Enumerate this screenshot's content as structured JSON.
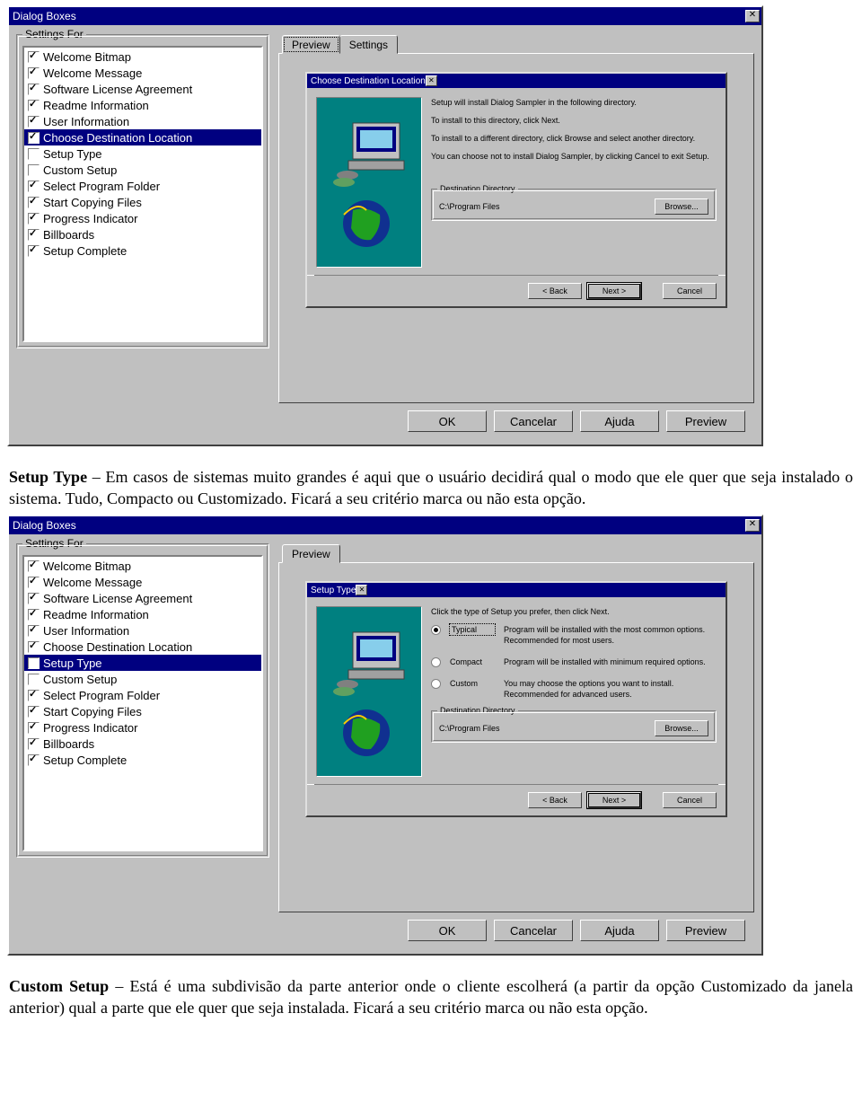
{
  "colors": {
    "titlebar": "#000080",
    "face": "#c0c0c0",
    "teal": "#008080"
  },
  "dialog1": {
    "window_title": "Dialog Boxes",
    "settings_label": "Settings For",
    "tabs": {
      "preview": "Preview",
      "settings": "Settings"
    },
    "items": [
      {
        "checked": true,
        "label": "Welcome Bitmap"
      },
      {
        "checked": true,
        "label": "Welcome Message"
      },
      {
        "checked": true,
        "label": "Software License Agreement"
      },
      {
        "checked": true,
        "label": "Readme Information"
      },
      {
        "checked": true,
        "label": "User Information"
      },
      {
        "checked": true,
        "label": "Choose Destination Location",
        "selected": true
      },
      {
        "checked": false,
        "label": "Setup Type"
      },
      {
        "checked": false,
        "label": "Custom Setup"
      },
      {
        "checked": true,
        "label": "Select Program Folder"
      },
      {
        "checked": true,
        "label": "Start Copying Files"
      },
      {
        "checked": true,
        "label": "Progress Indicator"
      },
      {
        "checked": true,
        "label": "Billboards"
      },
      {
        "checked": true,
        "label": "Setup Complete"
      }
    ],
    "installer": {
      "title": "Choose Destination Location",
      "p1": "Setup will install Dialog Sampler in the following directory.",
      "p2": "To install to this directory, click Next.",
      "p3": "To install to a different directory, click Browse and select another directory.",
      "p4": "You can choose not to install Dialog Sampler, by clicking Cancel to exit Setup.",
      "dest_label": "Destination Directory",
      "dest_path": "C:\\Program Files",
      "browse": "Browse...",
      "back": "< Back",
      "next": "Next >",
      "cancel": "Cancel"
    },
    "buttons": {
      "ok": "OK",
      "cancel": "Cancelar",
      "help": "Ajuda",
      "preview": "Preview"
    }
  },
  "para1": {
    "lead": "Setup Type",
    "text": " – Em casos de sistemas muito grandes é aqui que o usuário decidirá qual o modo que ele quer que seja instalado o sistema. Tudo, Compacto ou Customizado. Ficará a seu critério marca ou não esta opção."
  },
  "dialog2": {
    "window_title": "Dialog Boxes",
    "settings_label": "Settings For",
    "tabs": {
      "preview": "Preview"
    },
    "items": [
      {
        "checked": true,
        "label": "Welcome Bitmap"
      },
      {
        "checked": true,
        "label": "Welcome Message"
      },
      {
        "checked": true,
        "label": "Software License Agreement"
      },
      {
        "checked": true,
        "label": "Readme Information"
      },
      {
        "checked": true,
        "label": "User Information"
      },
      {
        "checked": true,
        "label": "Choose Destination Location"
      },
      {
        "checked": false,
        "label": "Setup Type",
        "selected": true
      },
      {
        "checked": false,
        "label": "Custom Setup"
      },
      {
        "checked": true,
        "label": "Select Program Folder"
      },
      {
        "checked": true,
        "label": "Start Copying Files"
      },
      {
        "checked": true,
        "label": "Progress Indicator"
      },
      {
        "checked": true,
        "label": "Billboards"
      },
      {
        "checked": true,
        "label": "Setup Complete"
      }
    ],
    "installer": {
      "title": "Setup Type",
      "intro": "Click the type of Setup you prefer, then click Next.",
      "opts": [
        {
          "checked": true,
          "label": "Typical",
          "desc": "Program will be installed with the most common options. Recommended for most users."
        },
        {
          "checked": false,
          "label": "Compact",
          "desc": "Program will be installed with minimum required options."
        },
        {
          "checked": false,
          "label": "Custom",
          "desc": "You may choose the options you want to install. Recommended for advanced users."
        }
      ],
      "dest_label": "Destination Directory",
      "dest_path": "C:\\Program Files",
      "browse": "Browse...",
      "back": "< Back",
      "next": "Next >",
      "cancel": "Cancel"
    },
    "buttons": {
      "ok": "OK",
      "cancel": "Cancelar",
      "help": "Ajuda",
      "preview": "Preview"
    }
  },
  "para2": {
    "lead": "Custom Setup",
    "text": " – Está é uma subdivisão da parte anterior onde o cliente escolherá (a partir da opção Customizado da janela anterior) qual a parte que ele quer que seja instalada. Ficará a seu critério marca ou não esta opção."
  }
}
